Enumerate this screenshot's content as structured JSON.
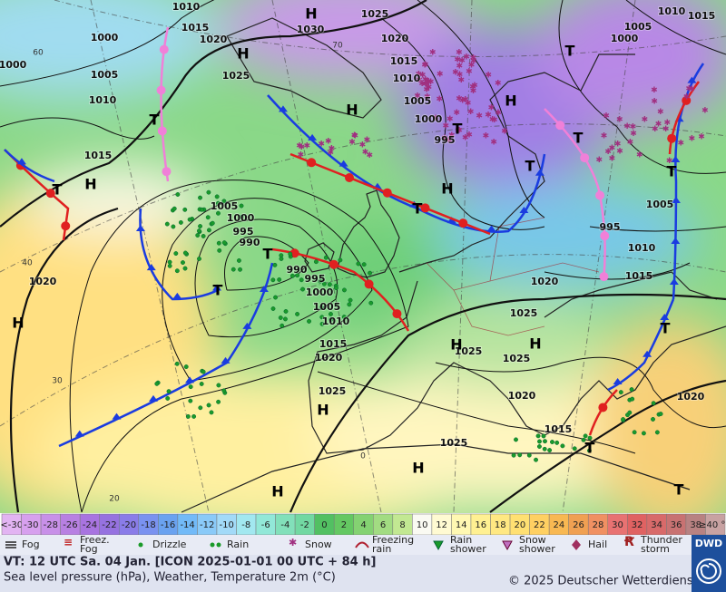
{
  "map": {
    "pressure_labels": [
      "1010",
      "1015",
      "1020",
      "1000",
      "1000",
      "1005",
      "1010",
      "1015",
      "1030",
      "1025",
      "1020",
      "1025",
      "1015",
      "1010",
      "1005",
      "1000",
      "995",
      "1005",
      "1000",
      "995",
      "990",
      "990",
      "995",
      "1000",
      "1005",
      "1010",
      "1015",
      "1020",
      "1025",
      "1020",
      "1005",
      "1000",
      "1010",
      "1015",
      "995",
      "1005",
      "1010",
      "1015",
      "1020",
      "1025",
      "1025",
      "1025",
      "1020",
      "1015",
      "1025",
      "1020"
    ],
    "temperature_labels": [
      "60",
      "70",
      "40",
      "30",
      "20",
      "0"
    ],
    "centers": [
      "H",
      "H",
      "H",
      "H",
      "H",
      "H",
      "H",
      "H",
      "H",
      "H",
      "H",
      "H",
      "T",
      "T",
      "T",
      "T",
      "T",
      "T",
      "T",
      "T",
      "T",
      "T",
      "T",
      "T",
      "T"
    ]
  },
  "scale": {
    "labels": [
      "<-30",
      -30,
      -28,
      -26,
      -24,
      -22,
      -20,
      -18,
      -16,
      -14,
      -12,
      -10,
      -8,
      -6,
      -4,
      -2,
      0,
      2,
      4,
      6,
      8,
      10,
      12,
      14,
      16,
      18,
      20,
      22,
      24,
      26,
      28,
      30,
      32,
      34,
      36,
      38,
      "≥40 °C"
    ],
    "colors": [
      "#e2b4f2",
      "#d7a0ee",
      "#c890e8",
      "#b880e2",
      "#a874e0",
      "#9672e0",
      "#8a7ce8",
      "#7a92f0",
      "#6aa2f0",
      "#72baf8",
      "#8acaf8",
      "#a2daf8",
      "#a2e8f0",
      "#92e8d8",
      "#82e0ba",
      "#72d8a2",
      "#52c062",
      "#64c862",
      "#84d272",
      "#a2dc82",
      "#c2e892",
      "#fafaf2",
      "#fffad2",
      "#fff8b2",
      "#fff092",
      "#ffe882",
      "#ffe072",
      "#ffd062",
      "#f8b852",
      "#f0a052",
      "#f09062",
      "#e87272",
      "#e06262",
      "#d86a6a",
      "#c87272",
      "#b88282",
      "#c8a2a2"
    ]
  },
  "legend": [
    "Fog",
    "Freez. Fog",
    "Drizzle",
    "Rain",
    "Snow",
    "Freezing rain",
    "Rain shower",
    "Snow shower",
    "Hail",
    "Thunder storm"
  ],
  "footer": {
    "valid_time": "VT: 12 UTC Sa.  04 Jan. [ICON 2025-01-01  00 UTC + 84 h]",
    "description": "Sea level pressure (hPa), Weather, Temperature 2m (°C)",
    "copyright": "© 2025 Deutscher Wetterdienst",
    "logo": "DWD"
  }
}
